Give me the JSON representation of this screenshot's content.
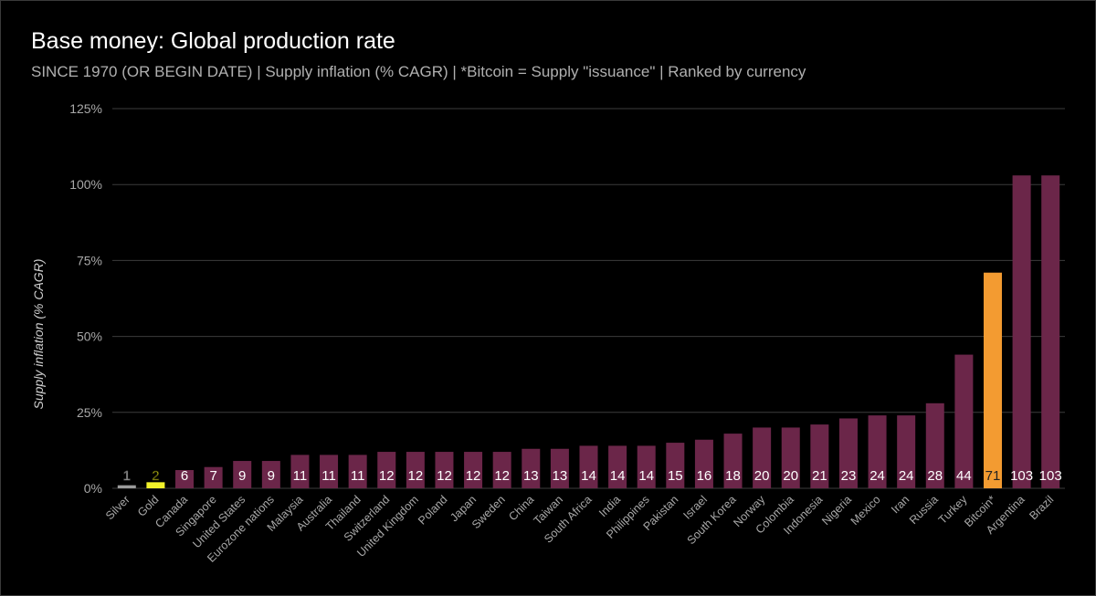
{
  "chart_data": {
    "type": "bar",
    "title": "Base money: Global production rate",
    "subtitle": "SINCE 1970 (OR BEGIN DATE) | Supply inflation (% CAGR) | *Bitcoin = Supply \"issuance\" | Ranked by currency",
    "xlabel": "",
    "ylabel": "Supply inflation (% CAGR)",
    "ylim": [
      0,
      125
    ],
    "yticks": [
      "0%",
      "25%",
      "50%",
      "75%",
      "100%",
      "125%"
    ],
    "yticks_values": [
      0,
      25,
      50,
      75,
      100,
      125
    ],
    "grid": true,
    "legend": "none",
    "categories": [
      "Silver",
      "Gold",
      "Canada",
      "Singapore",
      "United States",
      "Eurozone nations",
      "Malaysia",
      "Australia",
      "Thailand",
      "Switzerland",
      "United Kingdom",
      "Poland",
      "Japan",
      "Sweden",
      "China",
      "Taiwan",
      "South Africa",
      "India",
      "Philippines",
      "Pakistan",
      "Israel",
      "South Korea",
      "Norway",
      "Colombia",
      "Indonesia",
      "Nigeria",
      "Mexico",
      "Iran",
      "Russia",
      "Turkey",
      "Bitcoin*",
      "Argentina",
      "Brazil"
    ],
    "values": [
      1,
      2,
      6,
      7,
      9,
      9,
      11,
      11,
      11,
      12,
      12,
      12,
      12,
      12,
      13,
      13,
      14,
      14,
      14,
      15,
      16,
      18,
      20,
      20,
      21,
      23,
      24,
      24,
      28,
      44,
      71,
      103,
      103
    ],
    "data_labels": [
      "1",
      "2",
      "6",
      "7",
      "9",
      "9",
      "11",
      "11",
      "11",
      "12",
      "12",
      "12",
      "12",
      "12",
      "13",
      "13",
      "14",
      "14",
      "14",
      "15",
      "16",
      "18",
      "20",
      "20",
      "21",
      "23",
      "24",
      "24",
      "28",
      "44",
      "71",
      "103",
      "103"
    ],
    "colors": {
      "default_bar": "#6b2649",
      "silver": "#9a9a9a",
      "gold": "#f2f22a",
      "bitcoin": "#f39b31",
      "grid": "#3c3c3c",
      "tick_text": "#a8a8a8",
      "label_text": "#ffffff",
      "background": "#000000"
    },
    "bar_color_overrides": {
      "Silver": "silver",
      "Gold": "gold",
      "Bitcoin*": "bitcoin"
    }
  }
}
